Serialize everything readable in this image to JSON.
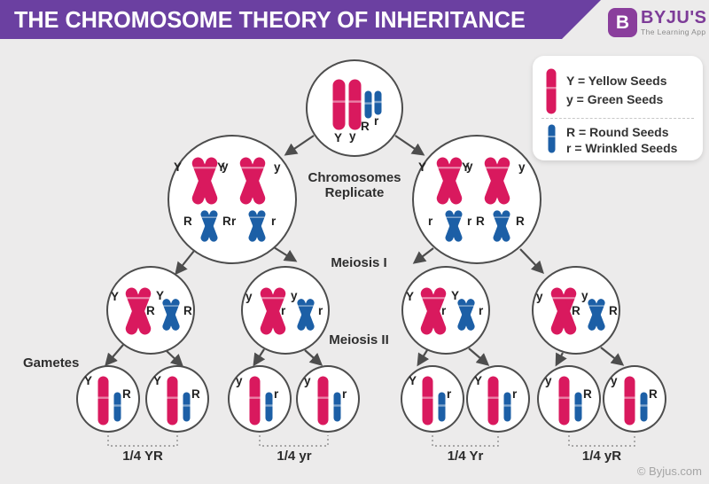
{
  "header": {
    "title": "THE CHROMOSOME THEORY OF INHERITANCE"
  },
  "logo": {
    "icon_letter": "B",
    "brand": "BYJU'S",
    "tagline": "The Learning App"
  },
  "legend": {
    "groups": [
      {
        "icon": "pink-chromosome-icon",
        "lines": [
          "Y = Yellow Seeds",
          "y = Green Seeds"
        ]
      },
      {
        "icon": "blue-chromosome-icon",
        "lines": [
          "R = Round Seeds",
          "r = Wrinkled Seeds"
        ]
      }
    ]
  },
  "stages": {
    "replicate_line1": "Chromosomes",
    "replicate_line2": "Replicate",
    "meiosis1": "Meiosis I",
    "meiosis2": "Meiosis II",
    "gametes": "Gametes"
  },
  "diagram": {
    "zygote": {
      "pink_labels": [
        "Y",
        "y"
      ],
      "blue_labels": [
        "R",
        "r"
      ]
    },
    "replicated_cells": [
      {
        "pink": [
          [
            "Y",
            "Y"
          ],
          [
            "y",
            "y"
          ]
        ],
        "blue": [
          [
            "R",
            "R"
          ],
          [
            "r",
            "r"
          ]
        ]
      },
      {
        "pink": [
          [
            "Y",
            "Y"
          ],
          [
            "y",
            "y"
          ]
        ],
        "blue": [
          [
            "r",
            "r"
          ],
          [
            "R",
            "R"
          ]
        ]
      }
    ],
    "meiosis1_cells": [
      {
        "pink": [
          "Y",
          "Y"
        ],
        "blue": [
          "R",
          "R"
        ]
      },
      {
        "pink": [
          "y",
          "y"
        ],
        "blue": [
          "r",
          "r"
        ]
      },
      {
        "pink": [
          "Y",
          "Y"
        ],
        "blue": [
          "r",
          "r"
        ]
      },
      {
        "pink": [
          "y",
          "y"
        ],
        "blue": [
          "R",
          "R"
        ]
      }
    ],
    "gametes": [
      {
        "pink": "Y",
        "blue": "R"
      },
      {
        "pink": "Y",
        "blue": "R"
      },
      {
        "pink": "y",
        "blue": "r"
      },
      {
        "pink": "y",
        "blue": "r"
      },
      {
        "pink": "Y",
        "blue": "r"
      },
      {
        "pink": "Y",
        "blue": "r"
      },
      {
        "pink": "y",
        "blue": "R"
      },
      {
        "pink": "y",
        "blue": "R"
      }
    ],
    "fractions": [
      "1/4 YR",
      "1/4 yr",
      "1/4 Yr",
      "1/4 yR"
    ]
  },
  "footer": {
    "copyright": "© Byjus.com"
  },
  "colors": {
    "banner_purple": "#6B40A1",
    "logo_purple": "#8A3E9C",
    "pink": "#D9195E",
    "blue": "#1C5FA6",
    "circle_border": "#4D4D4D",
    "arrow": "#4D4D4D",
    "background": "#ECEBEB",
    "text_dark": "#2B2B2B",
    "muted_gray": "#A5A5A5"
  }
}
